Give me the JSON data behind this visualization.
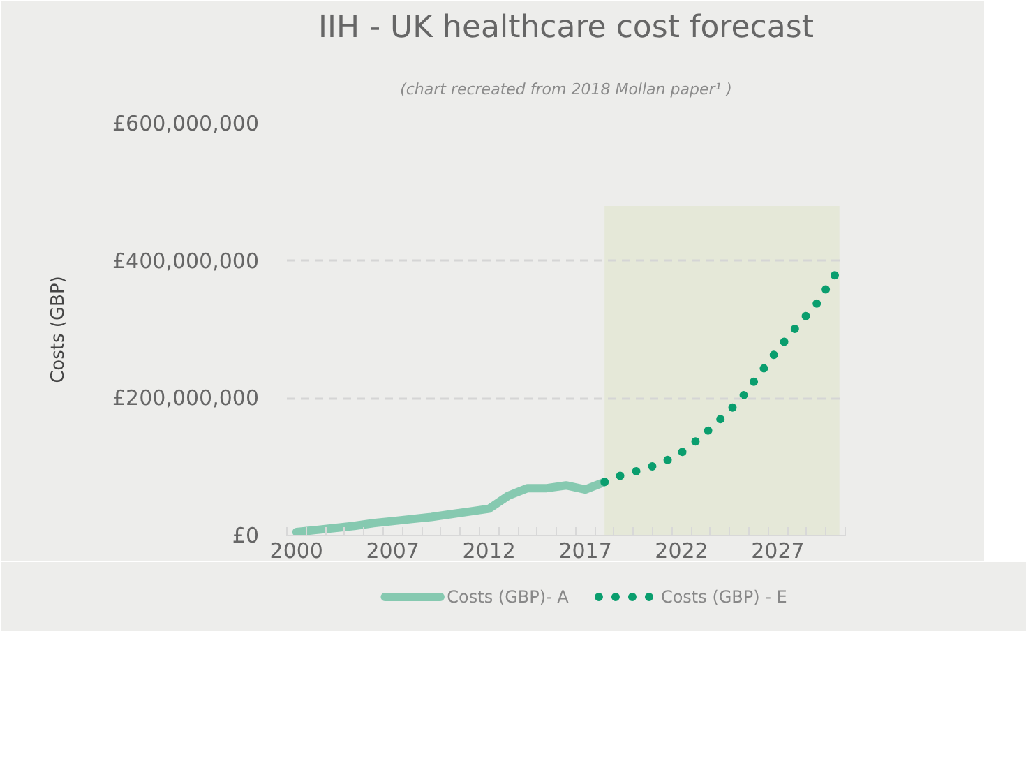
{
  "chart_data": {
    "type": "line",
    "title": "IIH - UK healthcare cost forecast",
    "subtitle": "(chart recreated from 2018 Mollan paper¹ )",
    "ylabel": "Costs (GBP)",
    "categories": [
      "2000",
      null,
      null,
      null,
      null,
      "2007",
      null,
      null,
      null,
      null,
      "2012",
      null,
      null,
      null,
      null,
      "2017",
      null,
      null,
      null,
      null,
      "2022",
      null,
      null,
      null,
      null,
      "2027",
      null,
      null,
      null
    ],
    "series": [
      {
        "name": "Costs (GBP)- A",
        "color": "#86c9b0",
        "line_style": "solid",
        "values": [
          5000000,
          8000000,
          11000000,
          14000000,
          18000000,
          21000000,
          24000000,
          27000000,
          31000000,
          35000000,
          39000000,
          58000000,
          69000000,
          69000000,
          73000000,
          67000000,
          78000000,
          null,
          null,
          null,
          null,
          null,
          null,
          null,
          null,
          null,
          null,
          null,
          null
        ]
      },
      {
        "name": "Costs (GBP) - E",
        "color": "#0a9e6e",
        "line_style": "dotted",
        "values": [
          null,
          null,
          null,
          null,
          null,
          null,
          null,
          null,
          null,
          null,
          null,
          null,
          null,
          null,
          null,
          null,
          78000000,
          89000000,
          96000000,
          106000000,
          121000000,
          143000000,
          169000000,
          196000000,
          233000000,
          271000000,
          305000000,
          337000000,
          381000000
        ]
      }
    ],
    "ylim": [
      0,
      600000000
    ],
    "yticks": [
      {
        "value": 0,
        "label": "£0"
      },
      {
        "value": 200000000,
        "label": "£200,000,000"
      },
      {
        "value": 400000000,
        "label": "£400,000,000"
      },
      {
        "value": 600000000,
        "label": "£600,000,000"
      }
    ],
    "grid": "y",
    "legend": "bottom"
  }
}
